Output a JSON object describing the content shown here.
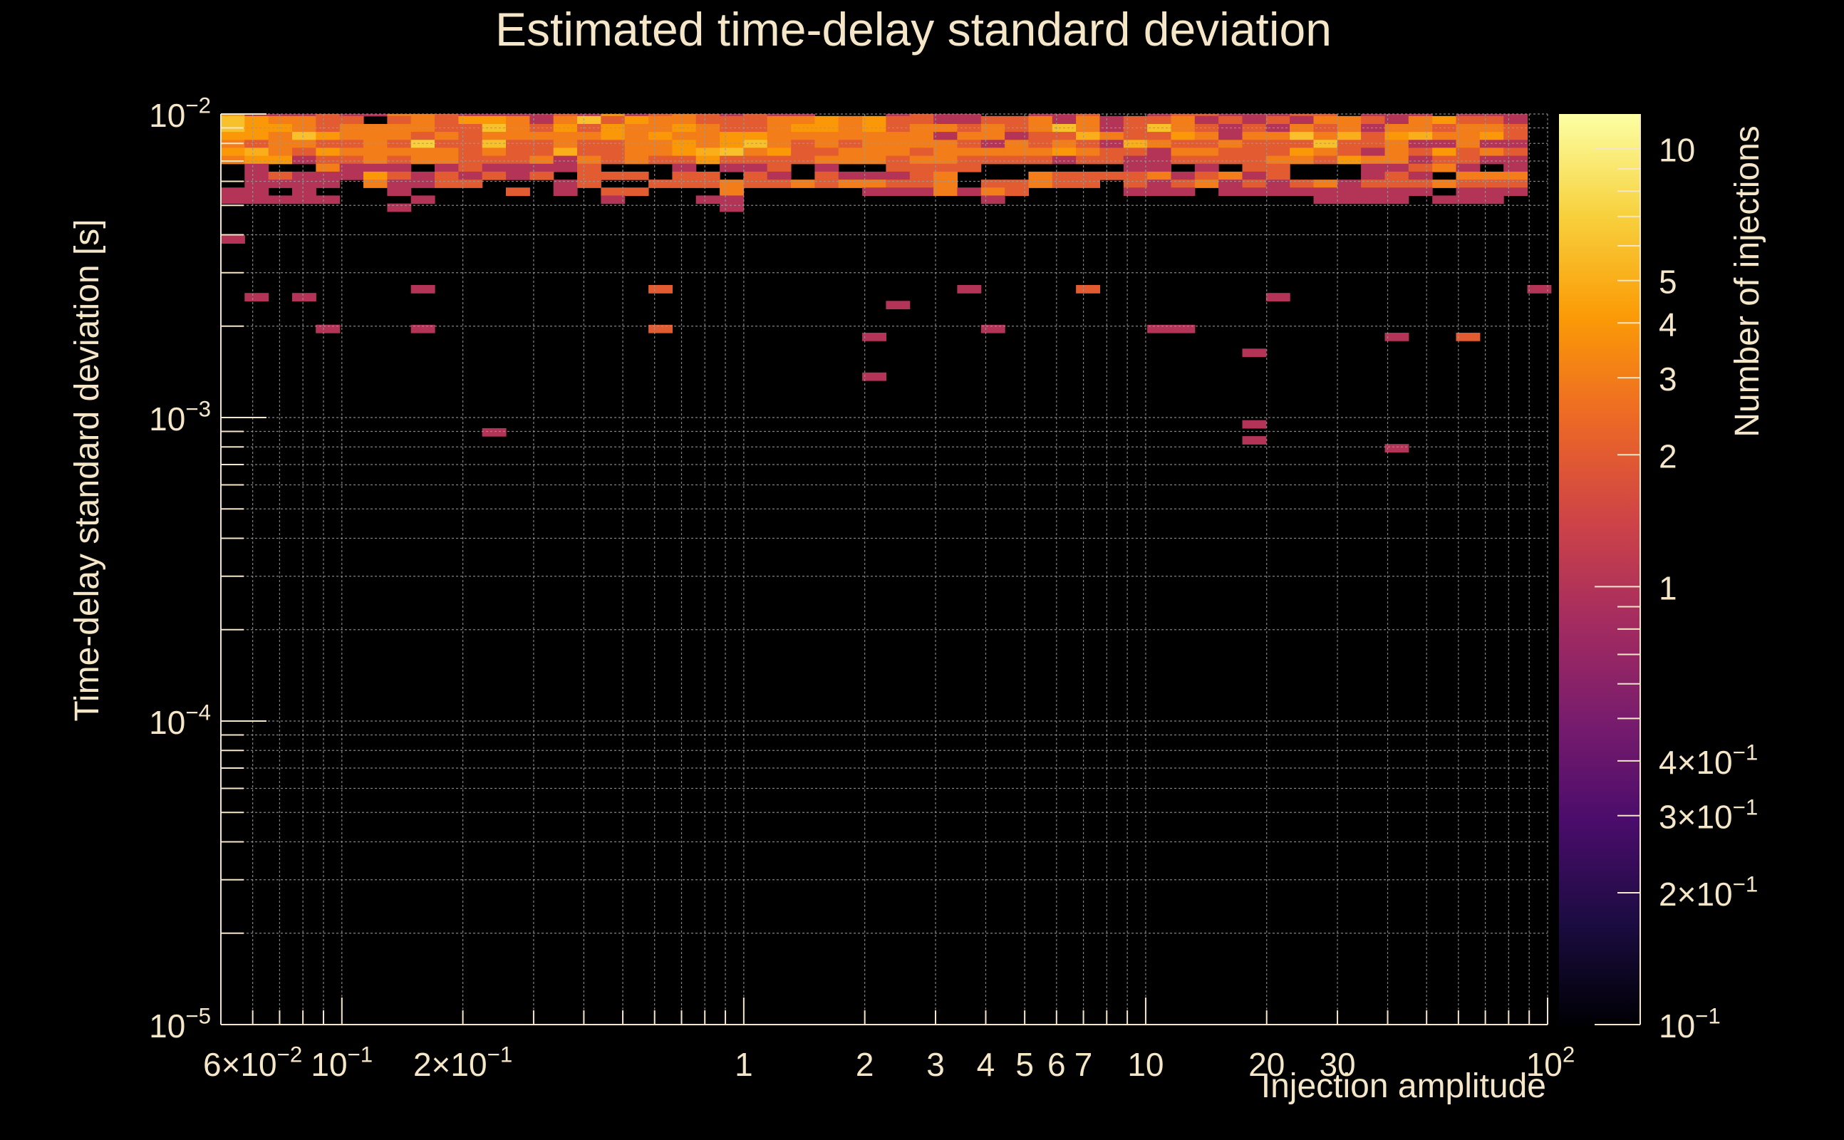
{
  "chart_data": {
    "type": "heatmap",
    "title": "Estimated time-delay standard deviation",
    "xlabel": "Injection amplitude",
    "ylabel": "Time-delay standard deviation [s]",
    "colorbar_label": "Number of injections",
    "x_scale": "log",
    "y_scale": "log",
    "z_scale": "log",
    "xlim": [
      0.05,
      100
    ],
    "ylim": [
      1e-05,
      0.01
    ],
    "zlim": [
      0.1,
      12
    ],
    "grid": true,
    "x_ticks": [
      {
        "value": 0.06,
        "label": "6×10",
        "exp": "−2"
      },
      {
        "value": 0.1,
        "label": "10",
        "exp": "−1"
      },
      {
        "value": 0.2,
        "label": "2×10",
        "exp": "−1"
      },
      {
        "value": 1,
        "label": "1",
        "exp": ""
      },
      {
        "value": 2,
        "label": "2",
        "exp": ""
      },
      {
        "value": 3,
        "label": "3",
        "exp": ""
      },
      {
        "value": 4,
        "label": "4",
        "exp": ""
      },
      {
        "value": 5,
        "label": "5",
        "exp": ""
      },
      {
        "value": 6,
        "label": "6",
        "exp": ""
      },
      {
        "value": 7,
        "label": "7",
        "exp": ""
      },
      {
        "value": 10,
        "label": "10",
        "exp": ""
      },
      {
        "value": 20,
        "label": "20",
        "exp": ""
      },
      {
        "value": 30,
        "label": "30",
        "exp": ""
      },
      {
        "value": 100,
        "label": "10",
        "exp": "2"
      }
    ],
    "y_ticks": [
      {
        "value": 1e-05,
        "label": "10",
        "exp": "−5"
      },
      {
        "value": 0.0001,
        "label": "10",
        "exp": "−4"
      },
      {
        "value": 0.001,
        "label": "10",
        "exp": "−3"
      },
      {
        "value": 0.01,
        "label": "10",
        "exp": "−2"
      }
    ],
    "z_ticks": [
      {
        "value": 0.1,
        "label": "10",
        "exp": "−1"
      },
      {
        "value": 0.2,
        "label": "2×10",
        "exp": "−1"
      },
      {
        "value": 0.3,
        "label": "3×10",
        "exp": "−1"
      },
      {
        "value": 0.4,
        "label": "4×10",
        "exp": "−1"
      },
      {
        "value": 1,
        "label": "1",
        "exp": ""
      },
      {
        "value": 2,
        "label": "2",
        "exp": ""
      },
      {
        "value": 3,
        "label": "3",
        "exp": ""
      },
      {
        "value": 4,
        "label": "4",
        "exp": ""
      },
      {
        "value": 5,
        "label": "5",
        "exp": ""
      },
      {
        "value": 10,
        "label": "10",
        "exp": ""
      }
    ],
    "colormap": [
      "#000004",
      "#1b0c41",
      "#4a0c6b",
      "#781c6d",
      "#a52c60",
      "#cf4446",
      "#ed6925",
      "#fb9b06",
      "#f7d13d",
      "#fcffa4"
    ],
    "background_color": "#000000",
    "text_color": "#f5e6c8",
    "cells": {
      "x_bins": 56,
      "y_value_at_row0": 0.00985,
      "row_log_step": 0.0262,
      "x_start": 0.05,
      "x_log_step": 0.0591,
      "counts_rows": [
        "4111211332111121412321211000121100112001221112201110111",
        "6433220232443136243322233434221122313122312121332134221",
        "6443233332263242433432234434233232363126321213231332332",
        "4436433323233333434334433333331331225322431336352453342",
        "3233223272262232233434632323333213232153223222622311311",
        "4532433333232252233456342233323333343221332224321324232",
        "3441223233222313232242222333233222212211222233243312211",
        "0100311101211112000101120100222200000011010220001123101",
        "0121114212121202220220210211123000322223123120001210333",
        "0111103112200012002223223233223022322021231212312223222",
        "1101000100002010220003000001113132000011101111111110111",
        "1111100010000000100011000000000010000000000000111101110",
        "0000000100000000000001000000000000000000000000000000000",
        "0000000000000000000000000000000000000000000000000000000",
        "0000000000000000000000000000000000000000000000000000000",
        "0000000000000000000000000000000000000000000000000000000",
        "1000000000000000000000000000000000000000000000000000000"
      ],
      "note_sparse": [
        {
          "x": 0.09,
          "y": 0.002,
          "n": 1
        },
        {
          "x": 0.095,
          "y": 0.002,
          "n": 1
        },
        {
          "x": 0.15,
          "y": 0.002,
          "n": 1
        },
        {
          "x": 0.6,
          "y": 0.002,
          "n": 2
        },
        {
          "x": 2.5,
          "y": 0.0023,
          "n": 1
        },
        {
          "x": 4.0,
          "y": 0.002,
          "n": 1
        },
        {
          "x": 11,
          "y": 0.002,
          "n": 1
        },
        {
          "x": 12,
          "y": 0.002,
          "n": 1
        },
        {
          "x": 40,
          "y": 0.0018,
          "n": 1
        },
        {
          "x": 60,
          "y": 0.0018,
          "n": 2
        },
        {
          "x": 2.0,
          "y": 0.0018,
          "n": 1
        },
        {
          "x": 2.0,
          "y": 0.0014,
          "n": 1
        },
        {
          "x": 18,
          "y": 0.0016,
          "n": 1
        },
        {
          "x": 18,
          "y": 0.00095,
          "n": 1
        },
        {
          "x": 18,
          "y": 0.00085,
          "n": 1
        },
        {
          "x": 0.25,
          "y": 0.00088,
          "n": 1
        },
        {
          "x": 45,
          "y": 0.0008,
          "n": 1
        },
        {
          "x": 0.06,
          "y": 0.0025,
          "n": 1
        },
        {
          "x": 0.08,
          "y": 0.0025,
          "n": 1
        },
        {
          "x": 0.15,
          "y": 0.0027,
          "n": 1
        },
        {
          "x": 0.6,
          "y": 0.0027,
          "n": 2
        },
        {
          "x": 3.5,
          "y": 0.0027,
          "n": 1
        },
        {
          "x": 7,
          "y": 0.0027,
          "n": 2
        },
        {
          "x": 20,
          "y": 0.0025,
          "n": 1
        },
        {
          "x": 90,
          "y": 0.0027,
          "n": 1
        }
      ]
    }
  }
}
